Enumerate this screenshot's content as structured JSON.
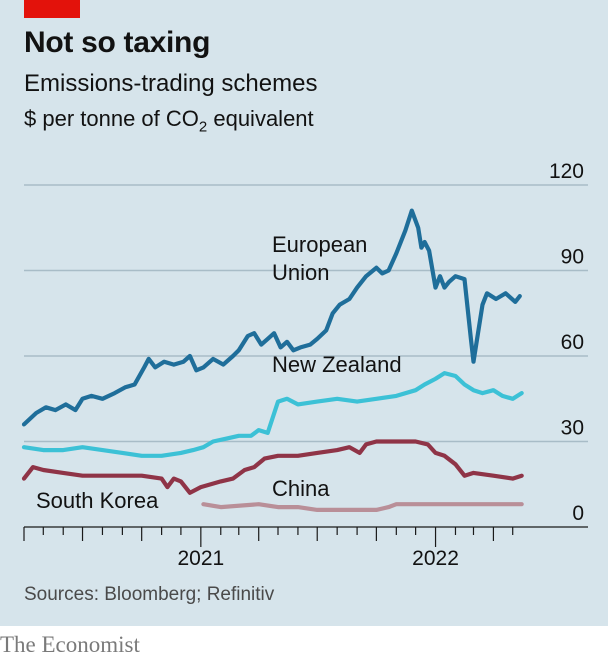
{
  "header": {
    "title": "Not so taxing",
    "subtitle": "Emissions-trading schemes",
    "unit_prefix": "$ per tonne of CO",
    "unit_sub": "2",
    "unit_suffix": " equivalent"
  },
  "footer": {
    "source": "Sources: Bloomberg; Refinitiv",
    "brand": "The Economist"
  },
  "colors": {
    "background": "#d6e4eb",
    "accent": "#e3120b",
    "european_union": "#1f6e9a",
    "new_zealand": "#3cc1d6",
    "south_korea": "#8f3447",
    "china": "#b98f98",
    "grid": "#a8bcc7"
  },
  "chart_data": {
    "type": "line",
    "title": "Not so taxing",
    "subtitle": "Emissions-trading schemes",
    "ylabel": "$ per tonne of CO2 equivalent",
    "ylim": [
      0,
      120
    ],
    "yticks": [
      0,
      30,
      60,
      90,
      120
    ],
    "xlim": [
      "2020-04-01",
      "2022-05-31"
    ],
    "xtick_labels": [
      "2021",
      "2022"
    ],
    "grid": true,
    "series": [
      {
        "name": "European Union",
        "label_lines": [
          "European",
          "Union"
        ],
        "points": [
          [
            "2020-04-01",
            36
          ],
          [
            "2020-04-20",
            40
          ],
          [
            "2020-05-05",
            42
          ],
          [
            "2020-05-20",
            41
          ],
          [
            "2020-06-05",
            43
          ],
          [
            "2020-06-20",
            41
          ],
          [
            "2020-07-01",
            45
          ],
          [
            "2020-07-15",
            46
          ],
          [
            "2020-08-01",
            45
          ],
          [
            "2020-08-20",
            47
          ],
          [
            "2020-09-05",
            49
          ],
          [
            "2020-09-20",
            50
          ],
          [
            "2020-10-05",
            56
          ],
          [
            "2020-10-12",
            59
          ],
          [
            "2020-10-22",
            56
          ],
          [
            "2020-11-05",
            58
          ],
          [
            "2020-11-20",
            57
          ],
          [
            "2020-12-05",
            58
          ],
          [
            "2020-12-15",
            60
          ],
          [
            "2020-12-25",
            55
          ],
          [
            "2021-01-05",
            56
          ],
          [
            "2021-01-20",
            59
          ],
          [
            "2021-02-05",
            57
          ],
          [
            "2021-02-20",
            60
          ],
          [
            "2021-03-01",
            62
          ],
          [
            "2021-03-15",
            67
          ],
          [
            "2021-03-25",
            68
          ],
          [
            "2021-04-05",
            64
          ],
          [
            "2021-04-15",
            66
          ],
          [
            "2021-04-25",
            68
          ],
          [
            "2021-05-05",
            63
          ],
          [
            "2021-05-15",
            65
          ],
          [
            "2021-05-25",
            62
          ],
          [
            "2021-06-05",
            63
          ],
          [
            "2021-06-20",
            64
          ],
          [
            "2021-07-01",
            66
          ],
          [
            "2021-07-15",
            69
          ],
          [
            "2021-07-25",
            75
          ],
          [
            "2021-08-05",
            78
          ],
          [
            "2021-08-20",
            80
          ],
          [
            "2021-09-01",
            84
          ],
          [
            "2021-09-15",
            88
          ],
          [
            "2021-10-01",
            91
          ],
          [
            "2021-10-10",
            89
          ],
          [
            "2021-10-20",
            90
          ],
          [
            "2021-11-01",
            96
          ],
          [
            "2021-11-15",
            104
          ],
          [
            "2021-11-25",
            111
          ],
          [
            "2021-12-05",
            105
          ],
          [
            "2021-12-10",
            98
          ],
          [
            "2021-12-15",
            100
          ],
          [
            "2021-12-22",
            97
          ],
          [
            "2022-01-01",
            84
          ],
          [
            "2022-01-08",
            88
          ],
          [
            "2022-01-15",
            84
          ],
          [
            "2022-01-22",
            86
          ],
          [
            "2022-02-01",
            88
          ],
          [
            "2022-02-15",
            87
          ],
          [
            "2022-02-25",
            66
          ],
          [
            "2022-03-01",
            58
          ],
          [
            "2022-03-08",
            68
          ],
          [
            "2022-03-15",
            78
          ],
          [
            "2022-03-22",
            82
          ],
          [
            "2022-04-05",
            80
          ],
          [
            "2022-04-20",
            82
          ],
          [
            "2022-05-05",
            79
          ],
          [
            "2022-05-12",
            81
          ]
        ]
      },
      {
        "name": "New Zealand",
        "label_lines": [
          "New Zealand"
        ],
        "points": [
          [
            "2020-04-01",
            28
          ],
          [
            "2020-05-01",
            27
          ],
          [
            "2020-06-01",
            27
          ],
          [
            "2020-07-01",
            28
          ],
          [
            "2020-08-01",
            27
          ],
          [
            "2020-09-01",
            26
          ],
          [
            "2020-10-01",
            25
          ],
          [
            "2020-11-01",
            25
          ],
          [
            "2020-12-01",
            26
          ],
          [
            "2020-12-20",
            27
          ],
          [
            "2021-01-05",
            28
          ],
          [
            "2021-01-20",
            30
          ],
          [
            "2021-02-10",
            31
          ],
          [
            "2021-03-01",
            32
          ],
          [
            "2021-03-20",
            32
          ],
          [
            "2021-04-01",
            34
          ],
          [
            "2021-04-15",
            33
          ],
          [
            "2021-05-01",
            44
          ],
          [
            "2021-05-15",
            45
          ],
          [
            "2021-06-01",
            43
          ],
          [
            "2021-07-01",
            44
          ],
          [
            "2021-08-01",
            45
          ],
          [
            "2021-09-01",
            44
          ],
          [
            "2021-10-01",
            45
          ],
          [
            "2021-11-01",
            46
          ],
          [
            "2021-12-01",
            48
          ],
          [
            "2021-12-15",
            50
          ],
          [
            "2022-01-01",
            52
          ],
          [
            "2022-01-15",
            54
          ],
          [
            "2022-02-01",
            53
          ],
          [
            "2022-02-15",
            50
          ],
          [
            "2022-03-01",
            48
          ],
          [
            "2022-03-15",
            47
          ],
          [
            "2022-04-01",
            48
          ],
          [
            "2022-04-15",
            46
          ],
          [
            "2022-05-01",
            45
          ],
          [
            "2022-05-15",
            47
          ]
        ]
      },
      {
        "name": "South Korea",
        "label_lines": [
          "South Korea"
        ],
        "points": [
          [
            "2020-04-01",
            17
          ],
          [
            "2020-04-15",
            21
          ],
          [
            "2020-05-01",
            20
          ],
          [
            "2020-06-01",
            19
          ],
          [
            "2020-07-01",
            18
          ],
          [
            "2020-08-01",
            18
          ],
          [
            "2020-09-01",
            18
          ],
          [
            "2020-10-01",
            18
          ],
          [
            "2020-11-01",
            17
          ],
          [
            "2020-11-10",
            14
          ],
          [
            "2020-11-20",
            17
          ],
          [
            "2020-12-01",
            16
          ],
          [
            "2020-12-15",
            12
          ],
          [
            "2021-01-01",
            14
          ],
          [
            "2021-02-01",
            16
          ],
          [
            "2021-02-20",
            17
          ],
          [
            "2021-03-10",
            20
          ],
          [
            "2021-03-25",
            21
          ],
          [
            "2021-04-10",
            24
          ],
          [
            "2021-05-01",
            25
          ],
          [
            "2021-06-01",
            25
          ],
          [
            "2021-07-01",
            26
          ],
          [
            "2021-08-01",
            27
          ],
          [
            "2021-08-20",
            28
          ],
          [
            "2021-09-05",
            26
          ],
          [
            "2021-09-15",
            29
          ],
          [
            "2021-10-01",
            30
          ],
          [
            "2021-11-01",
            30
          ],
          [
            "2021-12-01",
            30
          ],
          [
            "2021-12-20",
            29
          ],
          [
            "2022-01-01",
            26
          ],
          [
            "2022-01-15",
            25
          ],
          [
            "2022-02-01",
            22
          ],
          [
            "2022-02-15",
            18
          ],
          [
            "2022-03-01",
            19
          ],
          [
            "2022-04-01",
            18
          ],
          [
            "2022-05-01",
            17
          ],
          [
            "2022-05-15",
            18
          ]
        ]
      },
      {
        "name": "China",
        "label_lines": [
          "China"
        ],
        "points": [
          [
            "2021-01-05",
            8
          ],
          [
            "2021-02-01",
            7
          ],
          [
            "2021-04-01",
            8
          ],
          [
            "2021-05-01",
            7
          ],
          [
            "2021-06-01",
            7
          ],
          [
            "2021-07-01",
            6
          ],
          [
            "2021-08-01",
            6
          ],
          [
            "2021-09-01",
            6
          ],
          [
            "2021-10-01",
            6
          ],
          [
            "2021-10-20",
            7
          ],
          [
            "2021-11-01",
            8
          ],
          [
            "2021-12-01",
            8
          ],
          [
            "2022-01-01",
            8
          ],
          [
            "2022-02-01",
            8
          ],
          [
            "2022-03-01",
            8
          ],
          [
            "2022-04-01",
            8
          ],
          [
            "2022-05-01",
            8
          ],
          [
            "2022-05-15",
            8
          ]
        ]
      }
    ]
  }
}
